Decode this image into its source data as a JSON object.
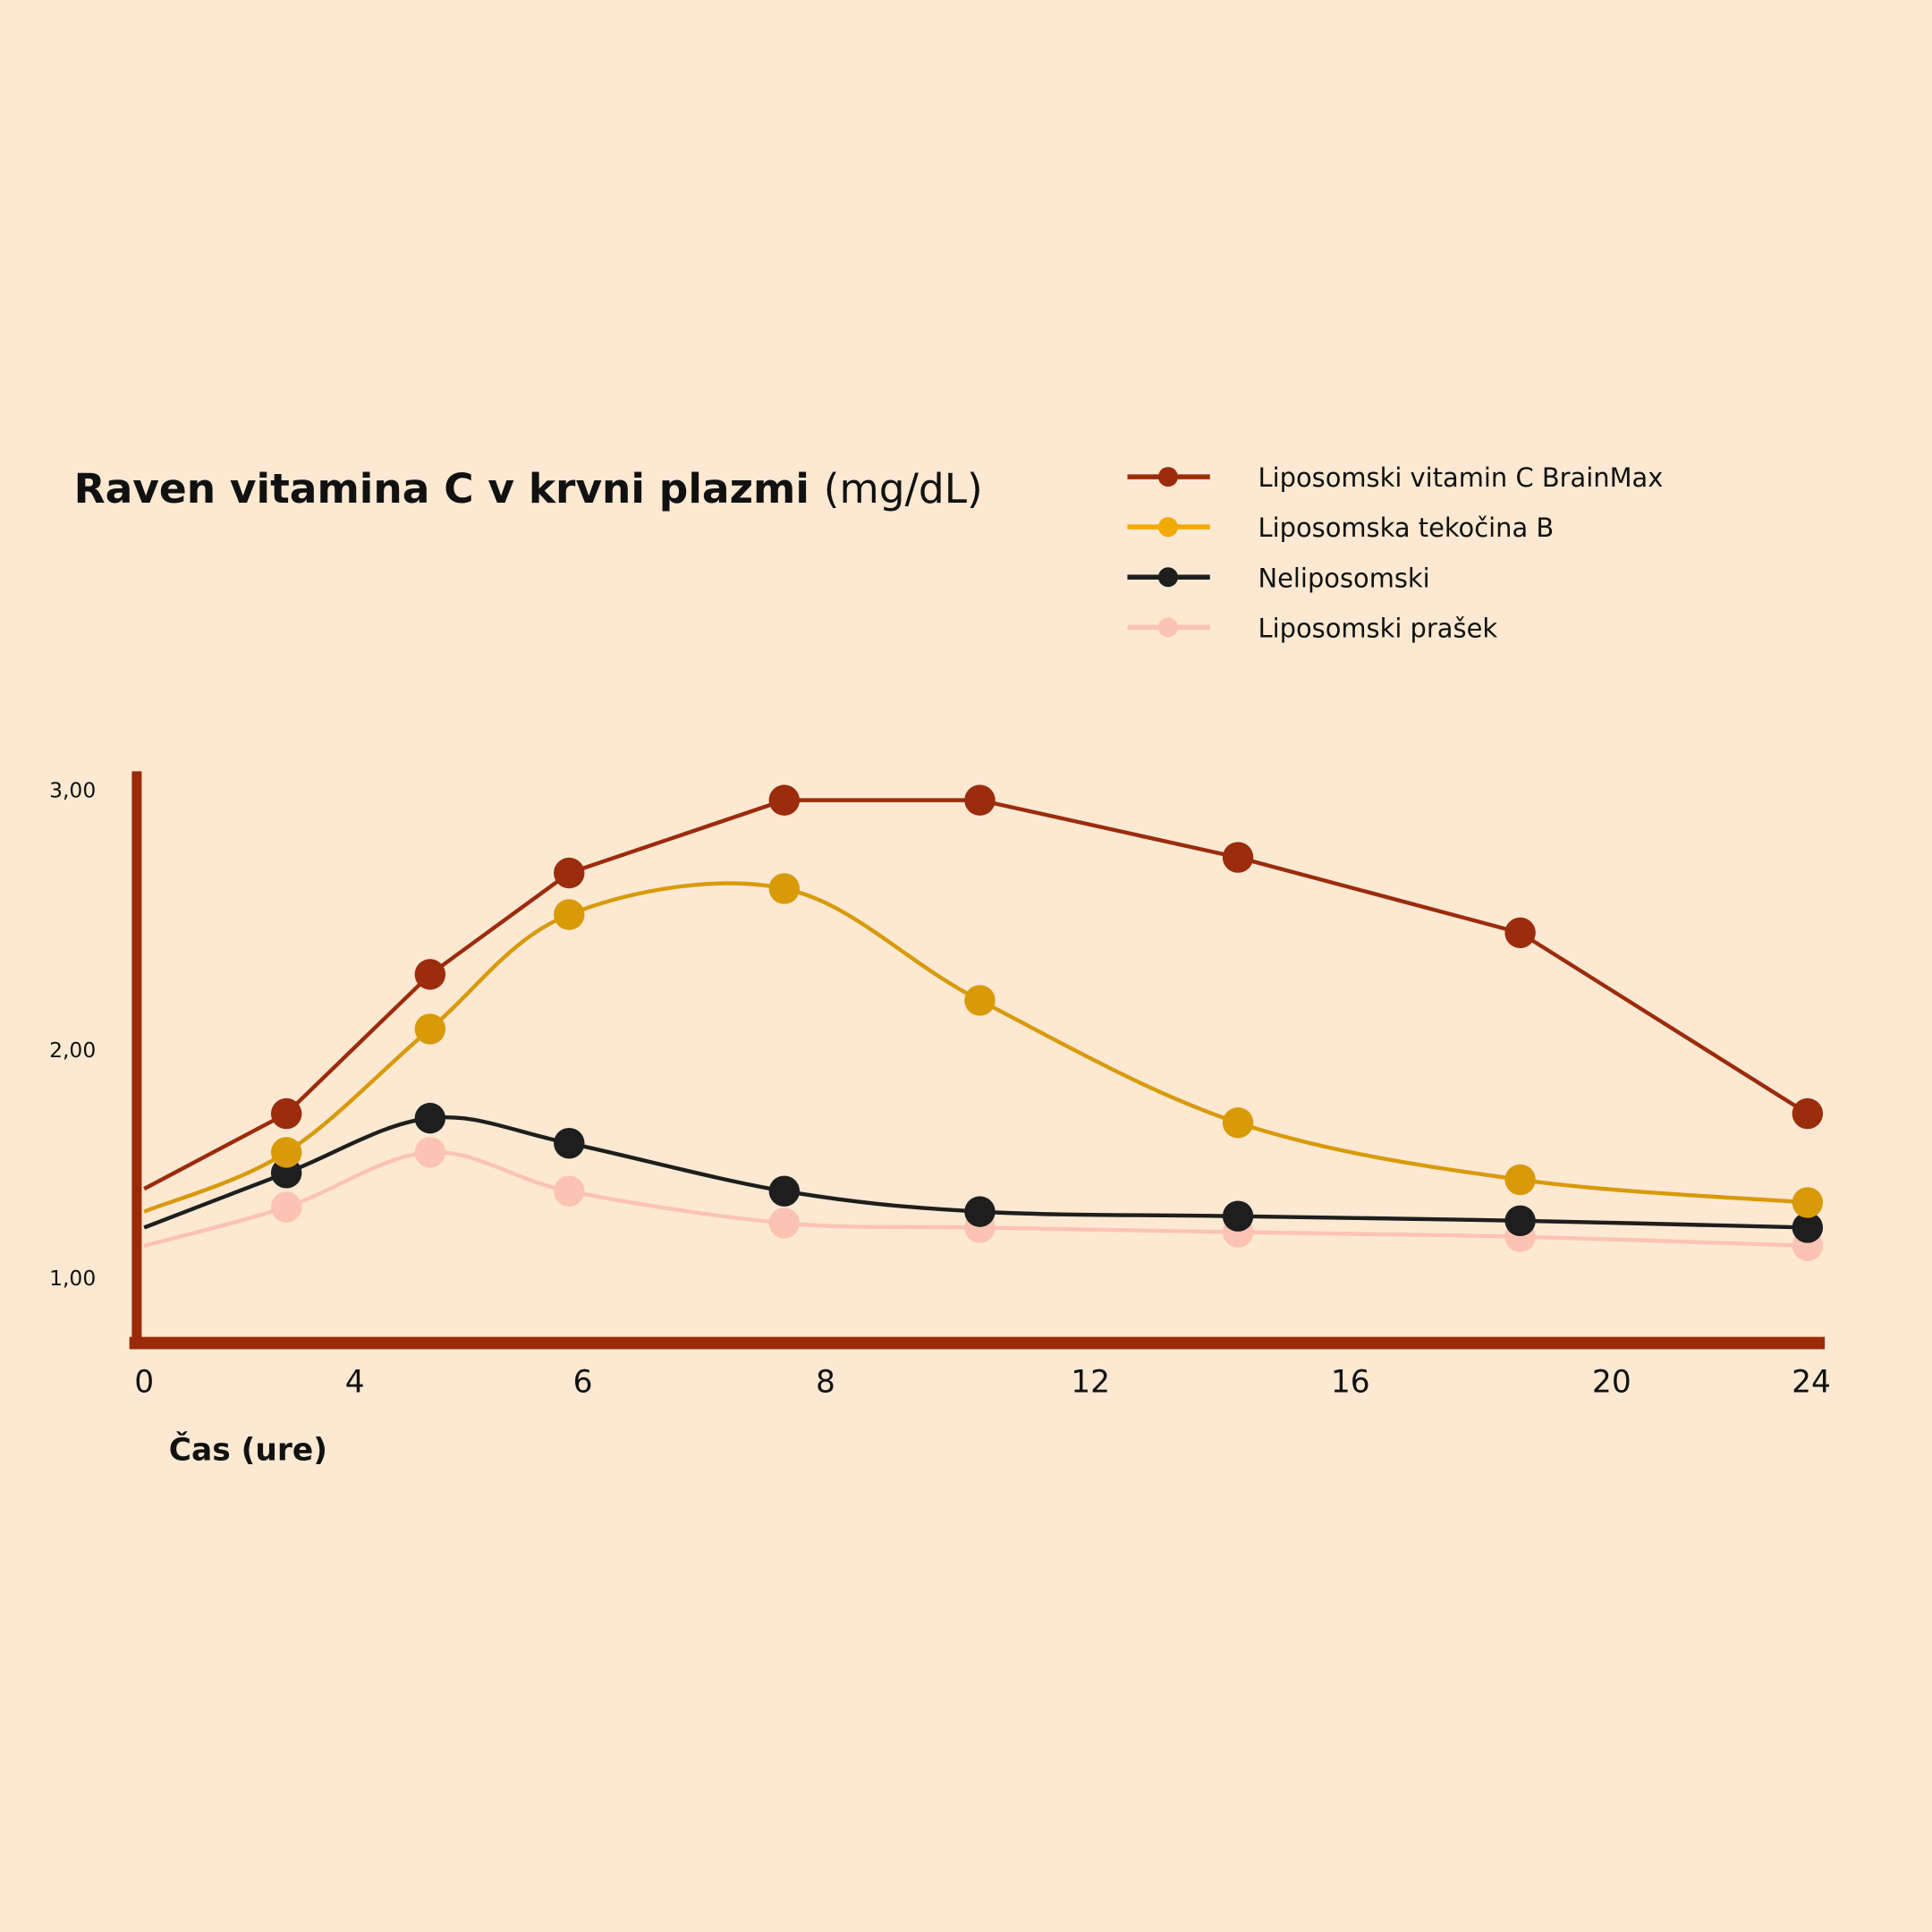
{
  "chart_data": {
    "type": "line",
    "title": "Raven vitamina C v krvni plazmi",
    "title_unit": "(mg/dL)",
    "xlabel": "Čas (ure)",
    "ylabel": "",
    "x_ticks": [
      0,
      4,
      6,
      8,
      12,
      16,
      20,
      24
    ],
    "y_ticks": [
      "1,00",
      "2,00",
      "3,00"
    ],
    "y_tick_values": [
      1,
      2,
      3
    ],
    "xlim": [
      0,
      24
    ],
    "ylim": [
      0.75,
      3.05
    ],
    "grid": false,
    "legend_position": "top-right",
    "background": "#fde8d2",
    "axis_color": "#9a2a08",
    "series": [
      {
        "name": "Liposomski vitamin C BrainMax",
        "color": "#9b2c0c",
        "legend_color": "#9b2c0c",
        "smooth": false,
        "x": [
          0,
          2.7,
          4.66,
          5.88,
          7.66,
          10.33,
          14.27,
          18.6,
          24
        ],
        "values": [
          1.39,
          1.72,
          2.29,
          2.68,
          2.96,
          2.96,
          2.74,
          2.45,
          1.72
        ]
      },
      {
        "name": "Liposomska tekočina B",
        "color": "#d89a06",
        "legend_color": "#f2aa00",
        "smooth": true,
        "x": [
          0,
          2.7,
          4.66,
          5.88,
          7.66,
          10.33,
          14.27,
          18.6,
          24
        ],
        "values": [
          1.29,
          1.55,
          2.08,
          2.52,
          2.62,
          2.19,
          1.68,
          1.43,
          1.33
        ]
      },
      {
        "name": "Neliposomski",
        "color": "#1e1e1e",
        "legend_color": "#1e1e1e",
        "smooth": true,
        "x": [
          0,
          2.7,
          4.66,
          5.88,
          7.66,
          10.33,
          14.27,
          18.6,
          24
        ],
        "values": [
          1.22,
          1.46,
          1.7,
          1.59,
          1.38,
          1.29,
          1.27,
          1.25,
          1.22
        ]
      },
      {
        "name": "Liposomski prašek",
        "color": "#fcc3b3",
        "legend_color": "#fcc3b3",
        "smooth": true,
        "x": [
          0,
          2.7,
          4.66,
          5.88,
          7.66,
          10.33,
          14.27,
          18.6,
          24
        ],
        "values": [
          1.14,
          1.31,
          1.55,
          1.38,
          1.24,
          1.22,
          1.2,
          1.18,
          1.14
        ]
      }
    ]
  }
}
